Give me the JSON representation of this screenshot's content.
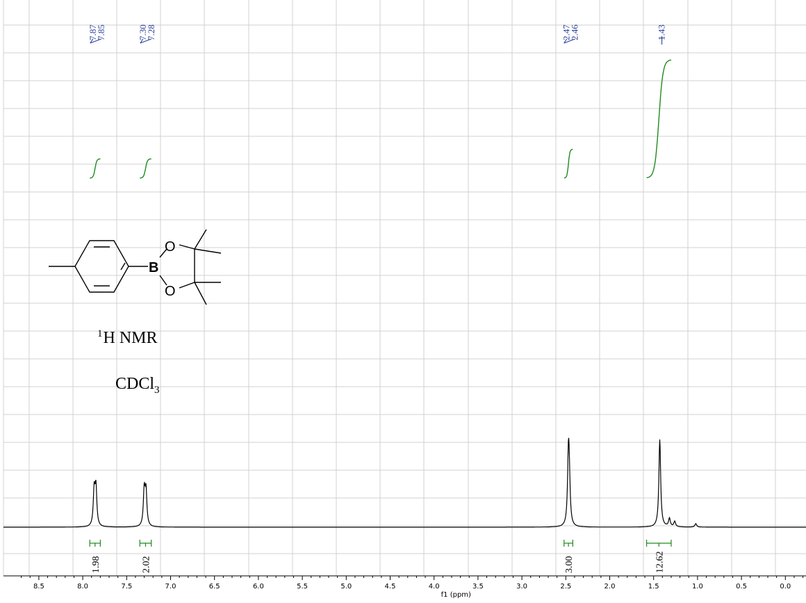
{
  "chart_data": {
    "type": "line",
    "title": "",
    "xlabel": "f1 (ppm)",
    "ylabel": "",
    "xlim": [
      8.7,
      -0.3
    ],
    "x_reversed": true,
    "grid": true,
    "x_ticks": [
      8.5,
      8.0,
      7.5,
      7.0,
      6.5,
      6.0,
      5.5,
      5.0,
      4.5,
      4.0,
      3.5,
      3.0,
      2.5,
      2.0,
      1.5,
      1.0,
      0.5,
      0.0
    ],
    "x_tick_labels": [
      "8.5",
      "8.0",
      "7.5",
      "7.0",
      "6.5",
      "6.0",
      "5.5",
      "5.0",
      "4.5",
      "4.0",
      "3.5",
      "3.0",
      "2.5",
      "2.0",
      "1.5",
      "1.0",
      "0.5",
      "0.0"
    ],
    "peaks": [
      {
        "shift": 7.87,
        "intensity": 0.51
      },
      {
        "shift": 7.85,
        "intensity": 0.54
      },
      {
        "shift": 7.3,
        "intensity": 0.51
      },
      {
        "shift": 7.28,
        "intensity": 0.49
      },
      {
        "shift": 2.47,
        "intensity": 0.97
      },
      {
        "shift": 2.46,
        "intensity": 0.5
      },
      {
        "shift": 1.43,
        "intensity": 1.26
      },
      {
        "shift": 1.32,
        "intensity": 0.12
      },
      {
        "shift": 1.26,
        "intensity": 0.08
      },
      {
        "shift": 1.02,
        "intensity": 0.05
      }
    ],
    "peak_labels": [
      {
        "group": [
          {
            "shift": 7.87,
            "label": "7.87"
          },
          {
            "shift": 7.85,
            "label": "7.85"
          }
        ]
      },
      {
        "group": [
          {
            "shift": 7.3,
            "label": "7.30"
          },
          {
            "shift": 7.28,
            "label": "7.28"
          }
        ]
      },
      {
        "group": [
          {
            "shift": 2.47,
            "label": "2.47"
          },
          {
            "shift": 2.46,
            "label": "2.46"
          }
        ]
      },
      {
        "group": [
          {
            "shift": 1.43,
            "label": "1.43"
          }
        ]
      }
    ],
    "integrals": [
      {
        "from": 7.92,
        "to": 7.8,
        "value": "1.98",
        "curve_rise": 0.12
      },
      {
        "from": 7.35,
        "to": 7.22,
        "value": "2.02",
        "curve_rise": 0.12
      },
      {
        "from": 2.52,
        "to": 2.42,
        "value": "3.00",
        "curve_rise": 0.18
      },
      {
        "from": 1.58,
        "to": 1.3,
        "value": "12.62",
        "curve_rise": 0.74
      }
    ],
    "annotation": {
      "nucleus_sup": "1",
      "nucleus": "H NMR",
      "solvent_base": "CDCl",
      "solvent_sub": "3"
    },
    "structure_atoms": {
      "boron": "B",
      "oxygen_top": "O",
      "oxygen_bottom": "O"
    },
    "colors": {
      "spectrum": "#000000",
      "integral": "#1f8a1f",
      "peak_label": "#2b3f9a",
      "grid": "#d0d0d0"
    }
  }
}
